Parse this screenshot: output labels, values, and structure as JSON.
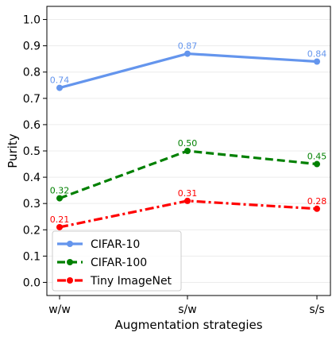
{
  "chart_data": {
    "type": "line",
    "xlabel": "Augmentation strategies",
    "ylabel": "Purity",
    "categories": [
      "w/w",
      "s/w",
      "s/s"
    ],
    "ylim": [
      -0.05,
      1.05
    ],
    "yticks": [
      0.0,
      0.1,
      0.2,
      0.3,
      0.4,
      0.5,
      0.6,
      0.7,
      0.8,
      0.9,
      1.0
    ],
    "ytick_labels": [
      "0.0",
      "0.1",
      "0.2",
      "0.3",
      "0.4",
      "0.5",
      "0.6",
      "0.7",
      "0.8",
      "0.9",
      "1.0"
    ],
    "grid": true,
    "legend_position": "lower-left",
    "series": [
      {
        "name": "CIFAR-10",
        "values": [
          0.74,
          0.87,
          0.84
        ],
        "labels": [
          "0.74",
          "0.87",
          "0.84"
        ],
        "color": "#6495ED",
        "linestyle": "solid"
      },
      {
        "name": "CIFAR-100",
        "values": [
          0.32,
          0.5,
          0.45
        ],
        "labels": [
          "0.32",
          "0.50",
          "0.45"
        ],
        "color": "#008000",
        "linestyle": "dashed"
      },
      {
        "name": "Tiny ImageNet",
        "values": [
          0.21,
          0.31,
          0.28
        ],
        "labels": [
          "0.21",
          "0.31",
          "0.28"
        ],
        "color": "#FF0000",
        "linestyle": "dashdot"
      }
    ]
  }
}
